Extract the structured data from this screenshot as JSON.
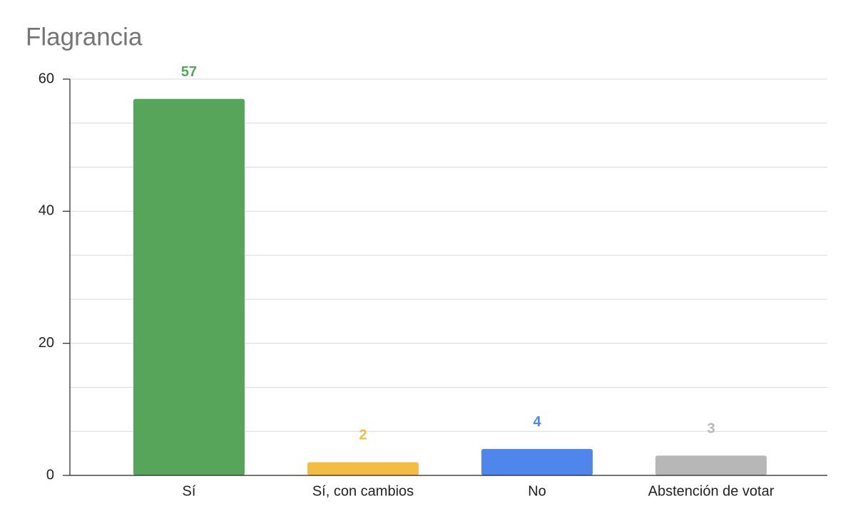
{
  "chart_data": {
    "type": "bar",
    "title": "Flagrancia",
    "categories": [
      "Sí",
      "Sí, con cambios",
      "No",
      "Abstención de votar"
    ],
    "values": [
      57,
      2,
      4,
      3
    ],
    "colors": [
      "#57a55a",
      "#f2bd42",
      "#4e86ec",
      "#b7b7b7"
    ],
    "ylim": [
      0,
      60
    ],
    "yticks": [
      0,
      20,
      40,
      60
    ],
    "grid": true,
    "minor_grid_divisions": 3
  }
}
